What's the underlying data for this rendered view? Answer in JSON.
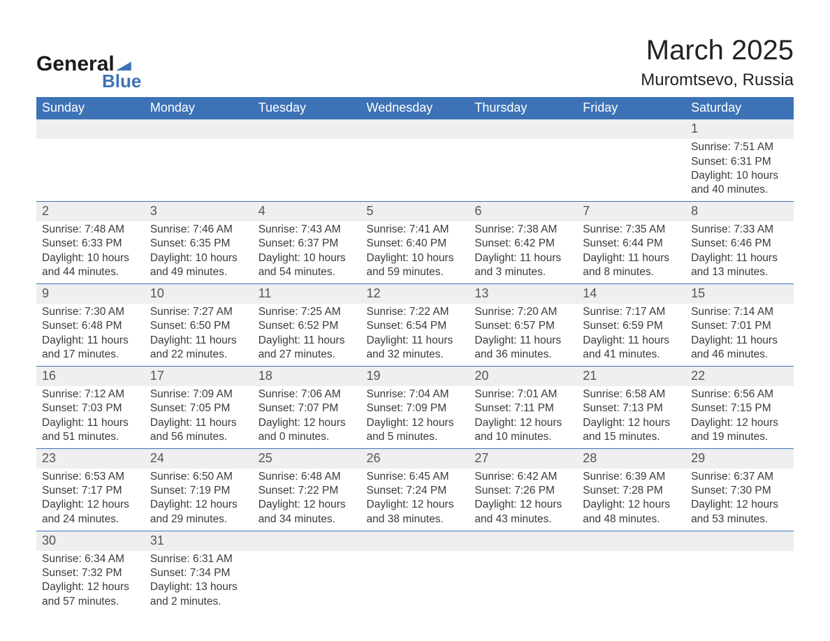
{
  "brand": {
    "line1": "General",
    "line2": "Blue",
    "flag_color": "#3d73b6",
    "text_color": "#1a1a1a"
  },
  "title": "March 2025",
  "location": "Muromtsevo, Russia",
  "colors": {
    "header_bg": "#3d73b6",
    "header_text": "#ffffff",
    "daynum_bg": "#efefef",
    "border": "#3d73b6",
    "body_text": "#3a3a3a",
    "page_bg": "#ffffff"
  },
  "fonts": {
    "title_size": 40,
    "location_size": 24,
    "weekday_size": 18,
    "daynum_size": 18,
    "cell_size": 15.5
  },
  "weekdays": [
    "Sunday",
    "Monday",
    "Tuesday",
    "Wednesday",
    "Thursday",
    "Friday",
    "Saturday"
  ],
  "weeks": [
    [
      null,
      null,
      null,
      null,
      null,
      null,
      {
        "n": "1",
        "sr": "Sunrise: 7:51 AM",
        "ss": "Sunset: 6:31 PM",
        "d1": "Daylight: 10 hours",
        "d2": "and 40 minutes."
      }
    ],
    [
      {
        "n": "2",
        "sr": "Sunrise: 7:48 AM",
        "ss": "Sunset: 6:33 PM",
        "d1": "Daylight: 10 hours",
        "d2": "and 44 minutes."
      },
      {
        "n": "3",
        "sr": "Sunrise: 7:46 AM",
        "ss": "Sunset: 6:35 PM",
        "d1": "Daylight: 10 hours",
        "d2": "and 49 minutes."
      },
      {
        "n": "4",
        "sr": "Sunrise: 7:43 AM",
        "ss": "Sunset: 6:37 PM",
        "d1": "Daylight: 10 hours",
        "d2": "and 54 minutes."
      },
      {
        "n": "5",
        "sr": "Sunrise: 7:41 AM",
        "ss": "Sunset: 6:40 PM",
        "d1": "Daylight: 10 hours",
        "d2": "and 59 minutes."
      },
      {
        "n": "6",
        "sr": "Sunrise: 7:38 AM",
        "ss": "Sunset: 6:42 PM",
        "d1": "Daylight: 11 hours",
        "d2": "and 3 minutes."
      },
      {
        "n": "7",
        "sr": "Sunrise: 7:35 AM",
        "ss": "Sunset: 6:44 PM",
        "d1": "Daylight: 11 hours",
        "d2": "and 8 minutes."
      },
      {
        "n": "8",
        "sr": "Sunrise: 7:33 AM",
        "ss": "Sunset: 6:46 PM",
        "d1": "Daylight: 11 hours",
        "d2": "and 13 minutes."
      }
    ],
    [
      {
        "n": "9",
        "sr": "Sunrise: 7:30 AM",
        "ss": "Sunset: 6:48 PM",
        "d1": "Daylight: 11 hours",
        "d2": "and 17 minutes."
      },
      {
        "n": "10",
        "sr": "Sunrise: 7:27 AM",
        "ss": "Sunset: 6:50 PM",
        "d1": "Daylight: 11 hours",
        "d2": "and 22 minutes."
      },
      {
        "n": "11",
        "sr": "Sunrise: 7:25 AM",
        "ss": "Sunset: 6:52 PM",
        "d1": "Daylight: 11 hours",
        "d2": "and 27 minutes."
      },
      {
        "n": "12",
        "sr": "Sunrise: 7:22 AM",
        "ss": "Sunset: 6:54 PM",
        "d1": "Daylight: 11 hours",
        "d2": "and 32 minutes."
      },
      {
        "n": "13",
        "sr": "Sunrise: 7:20 AM",
        "ss": "Sunset: 6:57 PM",
        "d1": "Daylight: 11 hours",
        "d2": "and 36 minutes."
      },
      {
        "n": "14",
        "sr": "Sunrise: 7:17 AM",
        "ss": "Sunset: 6:59 PM",
        "d1": "Daylight: 11 hours",
        "d2": "and 41 minutes."
      },
      {
        "n": "15",
        "sr": "Sunrise: 7:14 AM",
        "ss": "Sunset: 7:01 PM",
        "d1": "Daylight: 11 hours",
        "d2": "and 46 minutes."
      }
    ],
    [
      {
        "n": "16",
        "sr": "Sunrise: 7:12 AM",
        "ss": "Sunset: 7:03 PM",
        "d1": "Daylight: 11 hours",
        "d2": "and 51 minutes."
      },
      {
        "n": "17",
        "sr": "Sunrise: 7:09 AM",
        "ss": "Sunset: 7:05 PM",
        "d1": "Daylight: 11 hours",
        "d2": "and 56 minutes."
      },
      {
        "n": "18",
        "sr": "Sunrise: 7:06 AM",
        "ss": "Sunset: 7:07 PM",
        "d1": "Daylight: 12 hours",
        "d2": "and 0 minutes."
      },
      {
        "n": "19",
        "sr": "Sunrise: 7:04 AM",
        "ss": "Sunset: 7:09 PM",
        "d1": "Daylight: 12 hours",
        "d2": "and 5 minutes."
      },
      {
        "n": "20",
        "sr": "Sunrise: 7:01 AM",
        "ss": "Sunset: 7:11 PM",
        "d1": "Daylight: 12 hours",
        "d2": "and 10 minutes."
      },
      {
        "n": "21",
        "sr": "Sunrise: 6:58 AM",
        "ss": "Sunset: 7:13 PM",
        "d1": "Daylight: 12 hours",
        "d2": "and 15 minutes."
      },
      {
        "n": "22",
        "sr": "Sunrise: 6:56 AM",
        "ss": "Sunset: 7:15 PM",
        "d1": "Daylight: 12 hours",
        "d2": "and 19 minutes."
      }
    ],
    [
      {
        "n": "23",
        "sr": "Sunrise: 6:53 AM",
        "ss": "Sunset: 7:17 PM",
        "d1": "Daylight: 12 hours",
        "d2": "and 24 minutes."
      },
      {
        "n": "24",
        "sr": "Sunrise: 6:50 AM",
        "ss": "Sunset: 7:19 PM",
        "d1": "Daylight: 12 hours",
        "d2": "and 29 minutes."
      },
      {
        "n": "25",
        "sr": "Sunrise: 6:48 AM",
        "ss": "Sunset: 7:22 PM",
        "d1": "Daylight: 12 hours",
        "d2": "and 34 minutes."
      },
      {
        "n": "26",
        "sr": "Sunrise: 6:45 AM",
        "ss": "Sunset: 7:24 PM",
        "d1": "Daylight: 12 hours",
        "d2": "and 38 minutes."
      },
      {
        "n": "27",
        "sr": "Sunrise: 6:42 AM",
        "ss": "Sunset: 7:26 PM",
        "d1": "Daylight: 12 hours",
        "d2": "and 43 minutes."
      },
      {
        "n": "28",
        "sr": "Sunrise: 6:39 AM",
        "ss": "Sunset: 7:28 PM",
        "d1": "Daylight: 12 hours",
        "d2": "and 48 minutes."
      },
      {
        "n": "29",
        "sr": "Sunrise: 6:37 AM",
        "ss": "Sunset: 7:30 PM",
        "d1": "Daylight: 12 hours",
        "d2": "and 53 minutes."
      }
    ],
    [
      {
        "n": "30",
        "sr": "Sunrise: 6:34 AM",
        "ss": "Sunset: 7:32 PM",
        "d1": "Daylight: 12 hours",
        "d2": "and 57 minutes."
      },
      {
        "n": "31",
        "sr": "Sunrise: 6:31 AM",
        "ss": "Sunset: 7:34 PM",
        "d1": "Daylight: 13 hours",
        "d2": "and 2 minutes."
      },
      null,
      null,
      null,
      null,
      null
    ]
  ]
}
